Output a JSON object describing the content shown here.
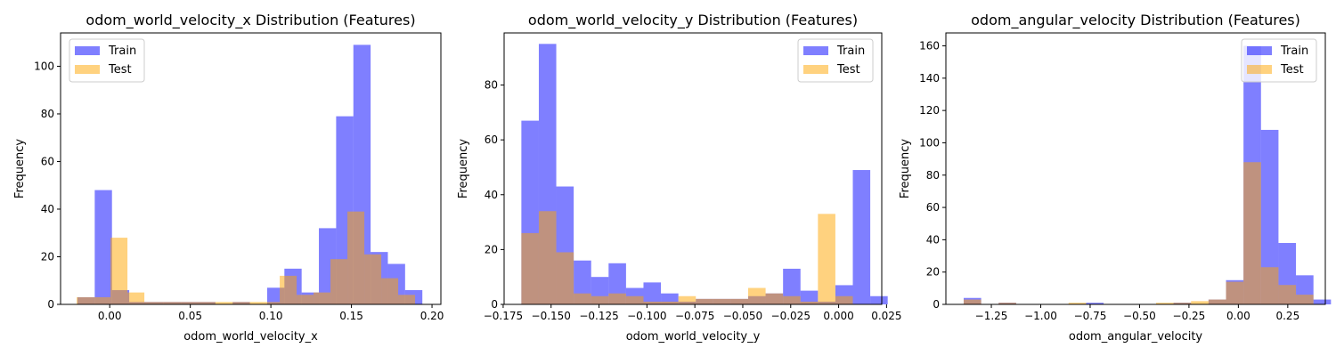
{
  "chart_data": [
    {
      "type": "bar",
      "title": "odom_world_velocity_x Distribution (Features)",
      "xlabel": "odom_world_velocity_x",
      "ylabel": "Frequency",
      "xlim": [
        -0.0305,
        0.2055
      ],
      "ylim": [
        0,
        114
      ],
      "xticks": [
        {
          "v": 0.0,
          "label": "0.00"
        },
        {
          "v": 0.05,
          "label": "0.05"
        },
        {
          "v": 0.1,
          "label": "0.10"
        },
        {
          "v": 0.15,
          "label": "0.15"
        },
        {
          "v": 0.2,
          "label": "0.20"
        }
      ],
      "yticks": [
        {
          "v": 0,
          "label": "0"
        },
        {
          "v": 20,
          "label": "20"
        },
        {
          "v": 40,
          "label": "40"
        },
        {
          "v": 60,
          "label": "60"
        },
        {
          "v": 80,
          "label": "80"
        },
        {
          "v": 100,
          "label": "100"
        }
      ],
      "legend_position": "upper left",
      "series": [
        {
          "name": "Train",
          "color": "#0000ff",
          "opacity": 0.5,
          "bin_start": -0.02,
          "bin_width": 0.0107,
          "counts": [
            3,
            48,
            6,
            1,
            1,
            1,
            1,
            1,
            0,
            1,
            0,
            7,
            15,
            5,
            32,
            79,
            109,
            22,
            17,
            6
          ]
        },
        {
          "name": "Test",
          "color": "#ffa500",
          "opacity": 0.5,
          "bin_start": -0.0205,
          "bin_width": 0.0105,
          "counts": [
            3,
            3,
            28,
            5,
            1,
            1,
            1,
            1,
            1,
            1,
            1,
            1,
            12,
            4,
            5,
            19,
            39,
            21,
            11,
            4
          ]
        }
      ]
    },
    {
      "type": "bar",
      "title": "odom_world_velocity_y Distribution (Features)",
      "xlabel": "odom_world_velocity_y",
      "ylabel": "Frequency",
      "xlim": [
        -0.1745,
        0.0225
      ],
      "ylim": [
        0,
        99
      ],
      "xticks": [
        {
          "v": -0.175,
          "label": "−0.175"
        },
        {
          "v": -0.15,
          "label": "−0.150"
        },
        {
          "v": -0.125,
          "label": "−0.125"
        },
        {
          "v": -0.1,
          "label": "−0.100"
        },
        {
          "v": -0.075,
          "label": "−0.075"
        },
        {
          "v": -0.05,
          "label": "−0.050"
        },
        {
          "v": -0.025,
          "label": "−0.025"
        },
        {
          "v": 0.0,
          "label": "0.000"
        },
        {
          "v": 0.025,
          "label": "0.025"
        }
      ],
      "yticks": [
        {
          "v": 0,
          "label": "0"
        },
        {
          "v": 20,
          "label": "20"
        },
        {
          "v": 40,
          "label": "40"
        },
        {
          "v": 60,
          "label": "60"
        },
        {
          "v": 80,
          "label": "80"
        }
      ],
      "legend_position": "upper right",
      "series": [
        {
          "name": "Train",
          "color": "#0000ff",
          "opacity": 0.5,
          "bin_start": -0.1655,
          "bin_width": 0.0091,
          "counts": [
            67,
            95,
            43,
            16,
            10,
            15,
            6,
            8,
            4,
            1,
            2,
            2,
            2,
            3,
            4,
            13,
            5,
            1,
            7,
            49,
            3
          ]
        },
        {
          "name": "Test",
          "color": "#ffa500",
          "opacity": 0.5,
          "bin_start": -0.1655,
          "bin_width": 0.0091,
          "counts": [
            26,
            34,
            19,
            4,
            3,
            4,
            3,
            1,
            1,
            3,
            2,
            2,
            2,
            6,
            4,
            3,
            1,
            33,
            3
          ]
        }
      ]
    },
    {
      "type": "bar",
      "title": "odom_angular_velocity Distribution (Features)",
      "xlabel": "odom_angular_velocity",
      "ylabel": "Frequency",
      "xlim": [
        -1.48,
        0.44
      ],
      "ylim": [
        0,
        168
      ],
      "xticks": [
        {
          "v": -1.25,
          "label": "−1.25"
        },
        {
          "v": -1.0,
          "label": "−1.00"
        },
        {
          "v": -0.75,
          "label": "−0.75"
        },
        {
          "v": -0.5,
          "label": "−0.50"
        },
        {
          "v": -0.25,
          "label": "−0.25"
        },
        {
          "v": 0.0,
          "label": "0.00"
        },
        {
          "v": 0.25,
          "label": "0.25"
        }
      ],
      "yticks": [
        {
          "v": 0,
          "label": "0"
        },
        {
          "v": 20,
          "label": "20"
        },
        {
          "v": 40,
          "label": "40"
        },
        {
          "v": 60,
          "label": "60"
        },
        {
          "v": 80,
          "label": "80"
        },
        {
          "v": 100,
          "label": "100"
        },
        {
          "v": 120,
          "label": "120"
        },
        {
          "v": 140,
          "label": "140"
        },
        {
          "v": 160,
          "label": "160"
        }
      ],
      "legend_position": "upper right",
      "series": [
        {
          "name": "Train",
          "color": "#0000ff",
          "opacity": 0.5,
          "bin_start": -1.39,
          "bin_width": 0.0885,
          "counts": [
            4,
            0,
            1,
            0,
            0,
            0,
            0,
            1,
            0,
            0,
            0,
            0,
            1,
            0,
            3,
            15,
            160,
            108,
            38,
            18,
            3
          ]
        },
        {
          "name": "Test",
          "color": "#ffa500",
          "opacity": 0.5,
          "bin_start": -1.39,
          "bin_width": 0.0885,
          "counts": [
            3,
            0,
            1,
            0,
            0,
            0,
            1,
            0,
            0,
            0,
            0,
            1,
            1,
            2,
            3,
            14,
            88,
            23,
            12,
            6
          ]
        }
      ]
    }
  ]
}
